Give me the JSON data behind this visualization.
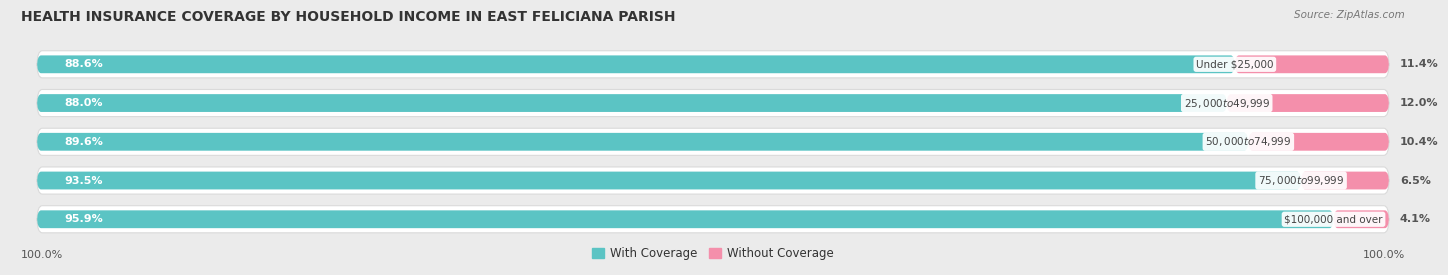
{
  "title": "HEALTH INSURANCE COVERAGE BY HOUSEHOLD INCOME IN EAST FELICIANA PARISH",
  "source": "Source: ZipAtlas.com",
  "categories": [
    "Under $25,000",
    "$25,000 to $49,999",
    "$50,000 to $74,999",
    "$75,000 to $99,999",
    "$100,000 and over"
  ],
  "with_coverage": [
    88.6,
    88.0,
    89.6,
    93.5,
    95.9
  ],
  "without_coverage": [
    11.4,
    12.0,
    10.4,
    6.5,
    4.1
  ],
  "color_with": "#5BC4C4",
  "color_without": "#F48FAB",
  "bg_color": "#EBEBEB",
  "bar_bg_color": "#FFFFFF",
  "title_fontsize": 10,
  "label_fontsize": 8,
  "cat_fontsize": 7.5,
  "legend_fontsize": 8.5,
  "source_fontsize": 7.5,
  "bottom_label": "100.0%"
}
